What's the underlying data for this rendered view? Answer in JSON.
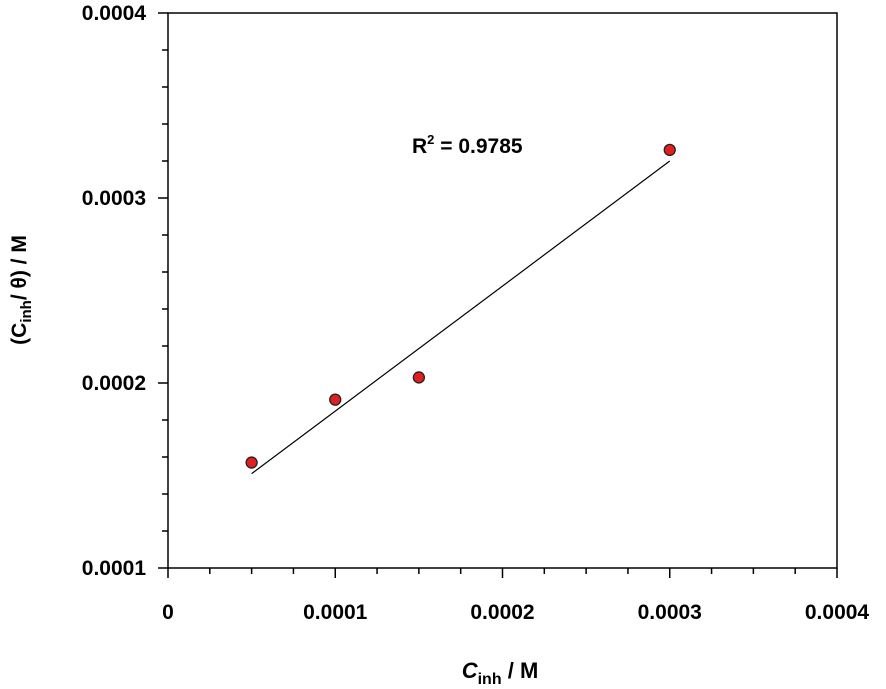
{
  "chart_data": {
    "type": "scatter",
    "xlabel_main": "C",
    "xlabel_sub": "inh",
    "xlabel_unit": " / M",
    "ylabel_prefix": "(C",
    "ylabel_sub": "inh",
    "ylabel_suffix": "/ θ) / M",
    "xlim": [
      0,
      0.0004
    ],
    "ylim": [
      0.0001,
      0.0004
    ],
    "x_ticks": [
      0,
      0.0001,
      0.0002,
      0.0003,
      0.0004
    ],
    "x_tick_labels": [
      "0",
      "0.0001",
      "0.0002",
      "0.0003",
      "0.0004"
    ],
    "y_ticks": [
      0.0001,
      0.0002,
      0.0003,
      0.0004
    ],
    "y_tick_labels": [
      "0.0001",
      "0.0002",
      "0.0003",
      "0.0004"
    ],
    "series": [
      {
        "x": [
          5e-05,
          0.0001,
          0.00015,
          0.0003
        ],
        "y": [
          0.000157,
          0.000191,
          0.000203,
          0.000326
        ],
        "marker_color": "#e02020"
      }
    ],
    "fit_line": {
      "x": [
        5e-05,
        0.0003
      ],
      "y": [
        0.000151,
        0.00032
      ]
    },
    "annotation": {
      "prefix": "R",
      "sup": "2",
      "text": " = 0.9785"
    },
    "grid": false,
    "legend": "none"
  }
}
